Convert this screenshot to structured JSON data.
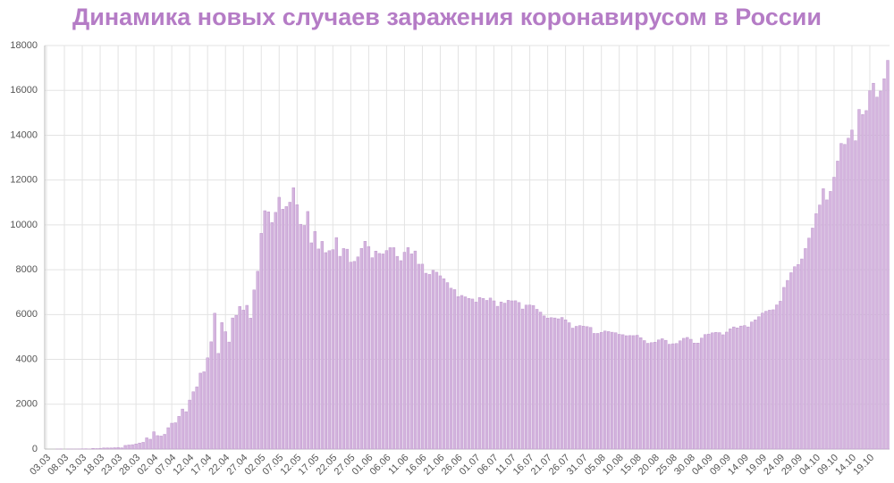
{
  "chart_data": {
    "type": "bar",
    "title": "Динамика новых случаев заражения коронавирусом в России",
    "color": "#d4b4de",
    "grid": true,
    "ylim": [
      0,
      18000
    ],
    "yticks": [
      0,
      2000,
      4000,
      6000,
      8000,
      10000,
      12000,
      14000,
      16000,
      18000
    ],
    "categories": [
      "03.03",
      null,
      null,
      null,
      null,
      "08.03",
      null,
      null,
      null,
      null,
      "13.03",
      null,
      null,
      null,
      null,
      "18.03",
      null,
      null,
      null,
      null,
      "23.03",
      null,
      null,
      null,
      null,
      "28.03",
      null,
      null,
      null,
      null,
      "02.04",
      null,
      null,
      null,
      null,
      "07.04",
      null,
      null,
      null,
      null,
      "12.04",
      null,
      null,
      null,
      null,
      "17.04",
      null,
      null,
      null,
      null,
      "22.04",
      null,
      null,
      null,
      null,
      "27.04",
      null,
      null,
      null,
      null,
      "02.05",
      null,
      null,
      null,
      null,
      "07.05",
      null,
      null,
      null,
      null,
      "12.05",
      null,
      null,
      null,
      null,
      "17.05",
      null,
      null,
      null,
      null,
      "22.05",
      null,
      null,
      null,
      null,
      "27.05",
      null,
      null,
      null,
      null,
      "01.06",
      null,
      null,
      null,
      null,
      "06.06",
      null,
      null,
      null,
      null,
      "11.06",
      null,
      null,
      null,
      null,
      "16.06",
      null,
      null,
      null,
      null,
      "21.06",
      null,
      null,
      null,
      null,
      "26.06",
      null,
      null,
      null,
      null,
      "01.07",
      null,
      null,
      null,
      null,
      "06.07",
      null,
      null,
      null,
      null,
      "11.07",
      null,
      null,
      null,
      null,
      "16.07",
      null,
      null,
      null,
      null,
      "21.07",
      null,
      null,
      null,
      null,
      "26.07",
      null,
      null,
      null,
      null,
      "31.07",
      null,
      null,
      null,
      null,
      "05.08",
      null,
      null,
      null,
      null,
      "10.08",
      null,
      null,
      null,
      null,
      "15.08",
      null,
      null,
      null,
      null,
      "20.08",
      null,
      null,
      null,
      null,
      "25.08",
      null,
      null,
      null,
      null,
      "30.08",
      null,
      null,
      null,
      null,
      "04.09",
      null,
      null,
      null,
      null,
      "09.09",
      null,
      null,
      null,
      null,
      "14.09",
      null,
      null,
      null,
      null,
      "19.09",
      null,
      null,
      null,
      null,
      "24.09",
      null,
      null,
      null,
      null,
      "29.09",
      null,
      null,
      null,
      null,
      "04.10",
      null,
      null,
      null,
      null,
      "09.10",
      null,
      null,
      null,
      null,
      "14.10",
      null,
      null,
      null,
      null,
      "19.10",
      null,
      null,
      null,
      null,
      null
    ],
    "values": [
      0,
      0,
      0,
      1,
      6,
      0,
      3,
      3,
      2,
      6,
      11,
      14,
      4,
      30,
      21,
      33,
      52,
      54,
      53,
      61,
      71,
      57,
      163,
      182,
      196,
      228,
      270,
      302,
      501,
      440,
      771,
      601,
      582,
      658,
      954,
      1154,
      1175,
      1459,
      1786,
      1667,
      2186,
      2558,
      2774,
      3388,
      3448,
      4070,
      4785,
      6060,
      4268,
      5642,
      5236,
      4774,
      5849,
      5966,
      6361,
      6198,
      6411,
      5841,
      7099,
      7933,
      9623,
      10633,
      10581,
      10102,
      10559,
      11231,
      10699,
      10817,
      11012,
      11656,
      10899,
      10028,
      9974,
      10598,
      9200,
      9709,
      8926,
      9263,
      8764,
      8849,
      8894,
      9434,
      8599,
      8946,
      8915,
      8338,
      8371,
      8572,
      8952,
      9268,
      9035,
      8536,
      8831,
      8726,
      8705,
      8855,
      8984,
      8985,
      8595,
      8404,
      8779,
      8987,
      8706,
      8835,
      8246,
      8248,
      7843,
      7790,
      7972,
      7889,
      7728,
      7600,
      7425,
      7176,
      7113,
      6800,
      6852,
      6791,
      6719,
      6693,
      6556,
      6760,
      6718,
      6632,
      6736,
      6611,
      6368,
      6562,
      6509,
      6635,
      6611,
      6615,
      6537,
      6248,
      6422,
      6428,
      6406,
      6234,
      6109,
      5940,
      5842,
      5862,
      5848,
      5811,
      5871,
      5765,
      5635,
      5395,
      5475,
      5509,
      5482,
      5462,
      5427,
      5159,
      5159,
      5204,
      5267,
      5241,
      5212,
      5189,
      5118,
      5102,
      5057,
      5065,
      5061,
      5076,
      4969,
      4839,
      4718,
      4748,
      4767,
      4870,
      4921,
      4852,
      4676,
      4696,
      4711,
      4829,
      4941,
      4980,
      4897,
      4729,
      4729,
      4952,
      5110,
      5130,
      5185,
      5205,
      5195,
      5099,
      5218,
      5363,
      5449,
      5406,
      5488,
      5509,
      5449,
      5670,
      5762,
      5905,
      6065,
      6148,
      6196,
      6215,
      6431,
      6595,
      7212,
      7523,
      7867,
      8135,
      8232,
      8481,
      8945,
      9412,
      9859,
      10499,
      10888,
      11615,
      11115,
      11493,
      12126,
      12846,
      13634,
      13592,
      13868,
      14231,
      13754,
      15150,
      14922,
      15099,
      15982,
      16319,
      15700,
      15971,
      16521,
      17340
    ]
  }
}
